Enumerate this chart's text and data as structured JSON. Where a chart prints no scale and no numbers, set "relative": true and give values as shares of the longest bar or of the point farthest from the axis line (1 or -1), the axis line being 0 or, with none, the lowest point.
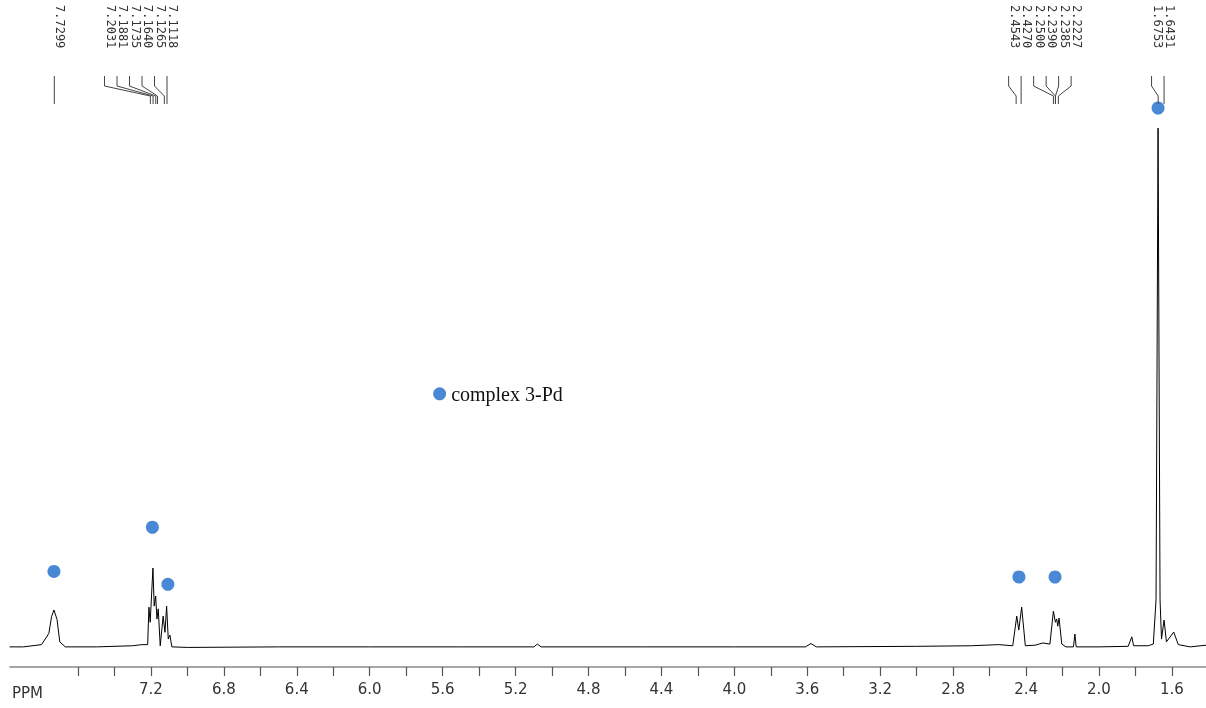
{
  "chart_data": {
    "type": "line",
    "xlabel": "PPM",
    "relative": true,
    "legend": "center",
    "grid": false,
    "xlim": [
      7.973,
      1.413
    ],
    "xticks": [
      {
        "value": 7.6,
        "label": null
      },
      {
        "value": 7.4,
        "label": null
      },
      7.2,
      {
        "value": 7.0,
        "label": null
      },
      6.8,
      {
        "value": 6.6,
        "label": null
      },
      6.4,
      {
        "value": 6.2,
        "label": null
      },
      {
        "value": 6.0,
        "label": "6.0"
      },
      {
        "value": 5.8,
        "label": null
      },
      5.6,
      {
        "value": 5.4,
        "label": null
      },
      5.2,
      {
        "value": 5.0,
        "label": null
      },
      4.8,
      {
        "value": 4.6,
        "label": null
      },
      4.4,
      {
        "value": 4.2,
        "label": null
      },
      {
        "value": 4.0,
        "label": "4.0"
      },
      {
        "value": 3.8,
        "label": null
      },
      3.6,
      {
        "value": 3.4,
        "label": null
      },
      3.2,
      {
        "value": 3.0,
        "label": null
      },
      2.8,
      {
        "value": 2.6,
        "label": null
      },
      2.4,
      {
        "value": 2.2,
        "label": null
      },
      {
        "value": 2.0,
        "label": "2.0"
      },
      {
        "value": 1.8,
        "label": null
      },
      1.6
    ],
    "annotations": [
      "7.7299",
      "7.2031",
      "7.1881",
      "7.1735",
      "7.1640",
      "7.1265",
      "7.1118",
      "2.4543",
      "2.4270",
      "2.2500",
      "2.2390",
      "2.2385",
      "2.2227",
      "1.6753",
      "1.6431"
    ],
    "series": [
      {
        "color": "#000000",
        "marker": "none",
        "line_style": "solid",
        "x": [
          7.973,
          7.9,
          7.8,
          7.76,
          7.745,
          7.732,
          7.715,
          7.7,
          7.67,
          7.5,
          7.3,
          7.25,
          7.218,
          7.211,
          7.204,
          7.189,
          7.182,
          7.174,
          7.167,
          7.16,
          7.149,
          7.133,
          7.123,
          7.114,
          7.105,
          7.096,
          7.085,
          7.0,
          6.5,
          6.0,
          5.5,
          5.1,
          5.08,
          5.06,
          4.5,
          4.0,
          3.61,
          3.58,
          3.55,
          3.0,
          2.7,
          2.55,
          2.473,
          2.451,
          2.44,
          2.424,
          2.404,
          2.35,
          2.307,
          2.269,
          2.25,
          2.239,
          2.232,
          2.226,
          2.219,
          2.204,
          2.181,
          2.14,
          2.132,
          2.125,
          2.0,
          1.84,
          1.82,
          1.81,
          1.73,
          1.702,
          1.687,
          1.676,
          1.665,
          1.657,
          1.643,
          1.63,
          1.59,
          1.565,
          1.5,
          1.413
        ],
        "values": [
          0.036,
          0.036,
          0.04,
          0.06,
          0.09,
          0.102,
          0.085,
          0.045,
          0.036,
          0.036,
          0.038,
          0.04,
          0.04,
          0.107,
          0.08,
          0.177,
          0.109,
          0.127,
          0.086,
          0.104,
          0.038,
          0.091,
          0.062,
          0.109,
          0.05,
          0.057,
          0.036,
          0.035,
          0.036,
          0.036,
          0.036,
          0.036,
          0.041,
          0.036,
          0.036,
          0.036,
          0.036,
          0.042,
          0.036,
          0.037,
          0.038,
          0.04,
          0.038,
          0.091,
          0.066,
          0.107,
          0.038,
          0.039,
          0.043,
          0.041,
          0.1,
          0.08,
          0.086,
          0.073,
          0.0875,
          0.041,
          0.036,
          0.036,
          0.059,
          0.036,
          0.036,
          0.037,
          0.054,
          0.038,
          0.038,
          0.041,
          0.12,
          0.964,
          0.12,
          0.05,
          0.084,
          0.045,
          0.0625,
          0.04,
          0.036,
          0.039
        ]
      },
      {
        "type": "scatter",
        "name": "complex 3-Pd",
        "color": "#1b6ac9",
        "marker": "circle",
        "x": [
          7.732,
          7.192,
          7.107,
          2.439,
          2.241,
          1.676
        ],
        "values": [
          0.171,
          0.25,
          0.148,
          0.161,
          0.161,
          1.0
        ]
      }
    ]
  }
}
